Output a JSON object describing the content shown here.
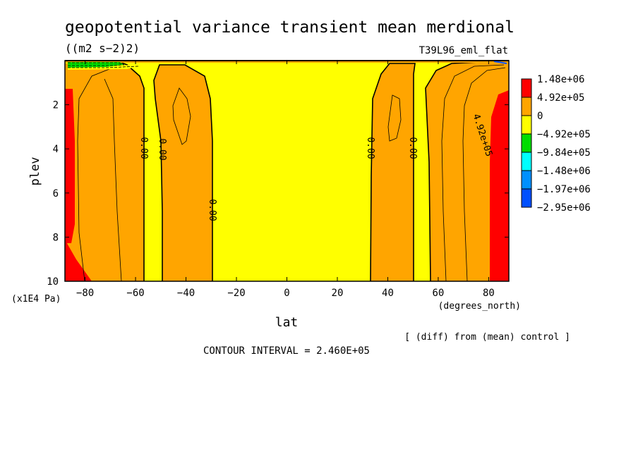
{
  "chart_data": {
    "type": "heatmap",
    "title": "geopotential variance transient mean merdional",
    "units": "((m2 s−2)2)",
    "run_label": "T39L96_eml_flat",
    "xlabel": "lat",
    "x_units": "(degrees_north)",
    "ylabel": "plev",
    "y_units": "(x1E4 Pa)",
    "xlim": [
      -88,
      88
    ],
    "ylim": [
      0,
      10
    ],
    "y_inverted": true,
    "x_ticks": [
      -80,
      -60,
      -40,
      -20,
      0,
      20,
      40,
      60,
      80
    ],
    "x_tick_labels": [
      "−80",
      "−60",
      "−40",
      "−20",
      "0",
      "20",
      "40",
      "60",
      "80"
    ],
    "y_ticks": [
      2,
      4,
      6,
      8,
      10
    ],
    "y_tick_labels": [
      "2",
      "4",
      "6",
      "8",
      "10"
    ],
    "colorbar": {
      "labels": [
        "1.48e+06",
        "4.92e+05",
        "0",
        "−4.92e+05",
        "−9.84e+05",
        "−1.48e+06",
        "−1.97e+06",
        "−2.95e+06"
      ],
      "colors": [
        "#ff0000",
        "#ffa500",
        "#ffff00",
        "#00dd00",
        "#00ffff",
        "#0090ff",
        "#0050ff"
      ]
    },
    "contour_labels": [
      "0.00",
      "0.00",
      "0.00",
      "0.00",
      "0.00",
      "4.92e+05"
    ],
    "note": "[ (diff) from (mean) control ]",
    "contour_interval": "CONTOUR INTERVAL = 2.460E+05"
  }
}
